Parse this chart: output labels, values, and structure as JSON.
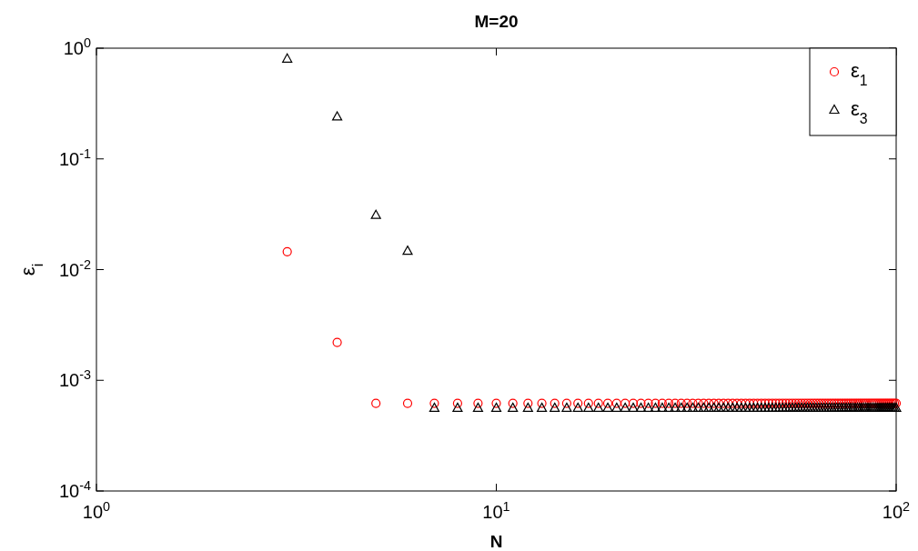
{
  "chart_data": {
    "type": "scatter",
    "title": "M=20",
    "xlabel": "N",
    "ylabel": "ε$_{i}$",
    "log": "xy",
    "grid": false,
    "legend": "top right",
    "xlim": [
      1,
      100
    ],
    "xticks": [
      {
        "value": 1,
        "label": "10$^{0}$"
      },
      {
        "value": 10,
        "label": "10$^{1}$"
      },
      {
        "value": 100,
        "label": "10$^{2}$"
      }
    ],
    "ylim": [
      0.0001,
      1
    ],
    "yticks": [
      {
        "value": 0.0001,
        "label": "10$^{-4}$"
      },
      {
        "value": 0.001,
        "label": "10$^{-3}$"
      },
      {
        "value": 0.01,
        "label": "10$^{-2}$"
      },
      {
        "value": 0.1,
        "label": "10$^{-1}$"
      },
      {
        "value": 1,
        "label": "10$^{0}$"
      }
    ],
    "x": [
      3,
      4,
      5,
      6,
      7,
      8,
      9,
      10,
      11,
      12,
      13,
      14,
      15,
      16,
      17,
      18,
      19,
      20,
      21,
      22,
      23,
      24,
      25,
      26,
      27,
      28,
      29,
      30,
      31,
      32,
      33,
      34,
      35,
      36,
      37,
      38,
      39,
      40,
      41,
      42,
      43,
      44,
      45,
      46,
      47,
      48,
      49,
      50,
      51,
      52,
      53,
      54,
      55,
      56,
      57,
      58,
      59,
      60,
      61,
      62,
      63,
      64,
      65,
      66,
      67,
      68,
      69,
      70,
      71,
      72,
      73,
      74,
      75,
      76,
      77,
      78,
      79,
      80,
      81,
      82,
      83,
      84,
      85,
      86,
      87,
      88,
      89,
      90,
      91,
      92,
      93,
      94,
      95,
      96,
      97,
      98,
      99,
      100
    ],
    "series": [
      {
        "name": "ε$_{1}$",
        "color": "#ff0000",
        "marker": "circle",
        "values": [
          0.0145,
          0.0022,
          0.00062,
          0.00062,
          0.00062,
          0.00062,
          0.00062,
          0.00062,
          0.00062,
          0.00062,
          0.00062,
          0.00062,
          0.00062,
          0.00062,
          0.00062,
          0.00062,
          0.00062,
          0.00062,
          0.00062,
          0.00062,
          0.00062,
          0.00062,
          0.00062,
          0.00062,
          0.00062,
          0.00062,
          0.00062,
          0.00062,
          0.00062,
          0.00062,
          0.00062,
          0.00062,
          0.00062,
          0.00062,
          0.00062,
          0.00062,
          0.00062,
          0.00062,
          0.00062,
          0.00062,
          0.00062,
          0.00062,
          0.00062,
          0.00062,
          0.00062,
          0.00062,
          0.00062,
          0.00062,
          0.00062,
          0.00062,
          0.00062,
          0.00062,
          0.00062,
          0.00062,
          0.00062,
          0.00062,
          0.00062,
          0.00062,
          0.00062,
          0.00062,
          0.00062,
          0.00062,
          0.00062,
          0.00062,
          0.00062,
          0.00062,
          0.00062,
          0.00062,
          0.00062,
          0.00062,
          0.00062,
          0.00062,
          0.00062,
          0.00062,
          0.00062,
          0.00062,
          0.00062,
          0.00062,
          0.00062,
          0.00062,
          0.00062,
          0.00062,
          0.00062,
          0.00062,
          0.00062,
          0.00062,
          0.00062,
          0.00062,
          0.00062,
          0.00062,
          0.00062,
          0.00062,
          0.00062,
          0.00062,
          0.00062,
          0.00062,
          0.00062,
          0.00062
        ]
      },
      {
        "name": "ε$_{3}$",
        "color": "#000000",
        "marker": "triangle",
        "values": [
          0.8,
          0.24,
          0.031,
          0.0147,
          0.00056,
          0.00056,
          0.00056,
          0.00056,
          0.00056,
          0.00056,
          0.00056,
          0.00056,
          0.00056,
          0.00056,
          0.00056,
          0.00056,
          0.00056,
          0.00056,
          0.00056,
          0.00056,
          0.00056,
          0.00056,
          0.00056,
          0.00056,
          0.00056,
          0.00056,
          0.00056,
          0.00056,
          0.00056,
          0.00056,
          0.00056,
          0.00056,
          0.00056,
          0.00056,
          0.00056,
          0.00056,
          0.00056,
          0.00056,
          0.00056,
          0.00056,
          0.00056,
          0.00056,
          0.00056,
          0.00056,
          0.00056,
          0.00056,
          0.00056,
          0.00056,
          0.00056,
          0.00056,
          0.00056,
          0.00056,
          0.00056,
          0.00056,
          0.00056,
          0.00056,
          0.00056,
          0.00056,
          0.00056,
          0.00056,
          0.00056,
          0.00056,
          0.00056,
          0.00056,
          0.00056,
          0.00056,
          0.00056,
          0.00056,
          0.00056,
          0.00056,
          0.00056,
          0.00056,
          0.00056,
          0.00056,
          0.00056,
          0.00056,
          0.00056,
          0.00056,
          0.00056,
          0.00056,
          0.00056,
          0.00056,
          0.00056,
          0.00056,
          0.00056,
          0.00056,
          0.00056,
          0.00056,
          0.00056,
          0.00056,
          0.00056,
          0.00056,
          0.00056,
          0.00056,
          0.00056,
          0.00056,
          0.00056,
          0.00056
        ]
      }
    ]
  }
}
